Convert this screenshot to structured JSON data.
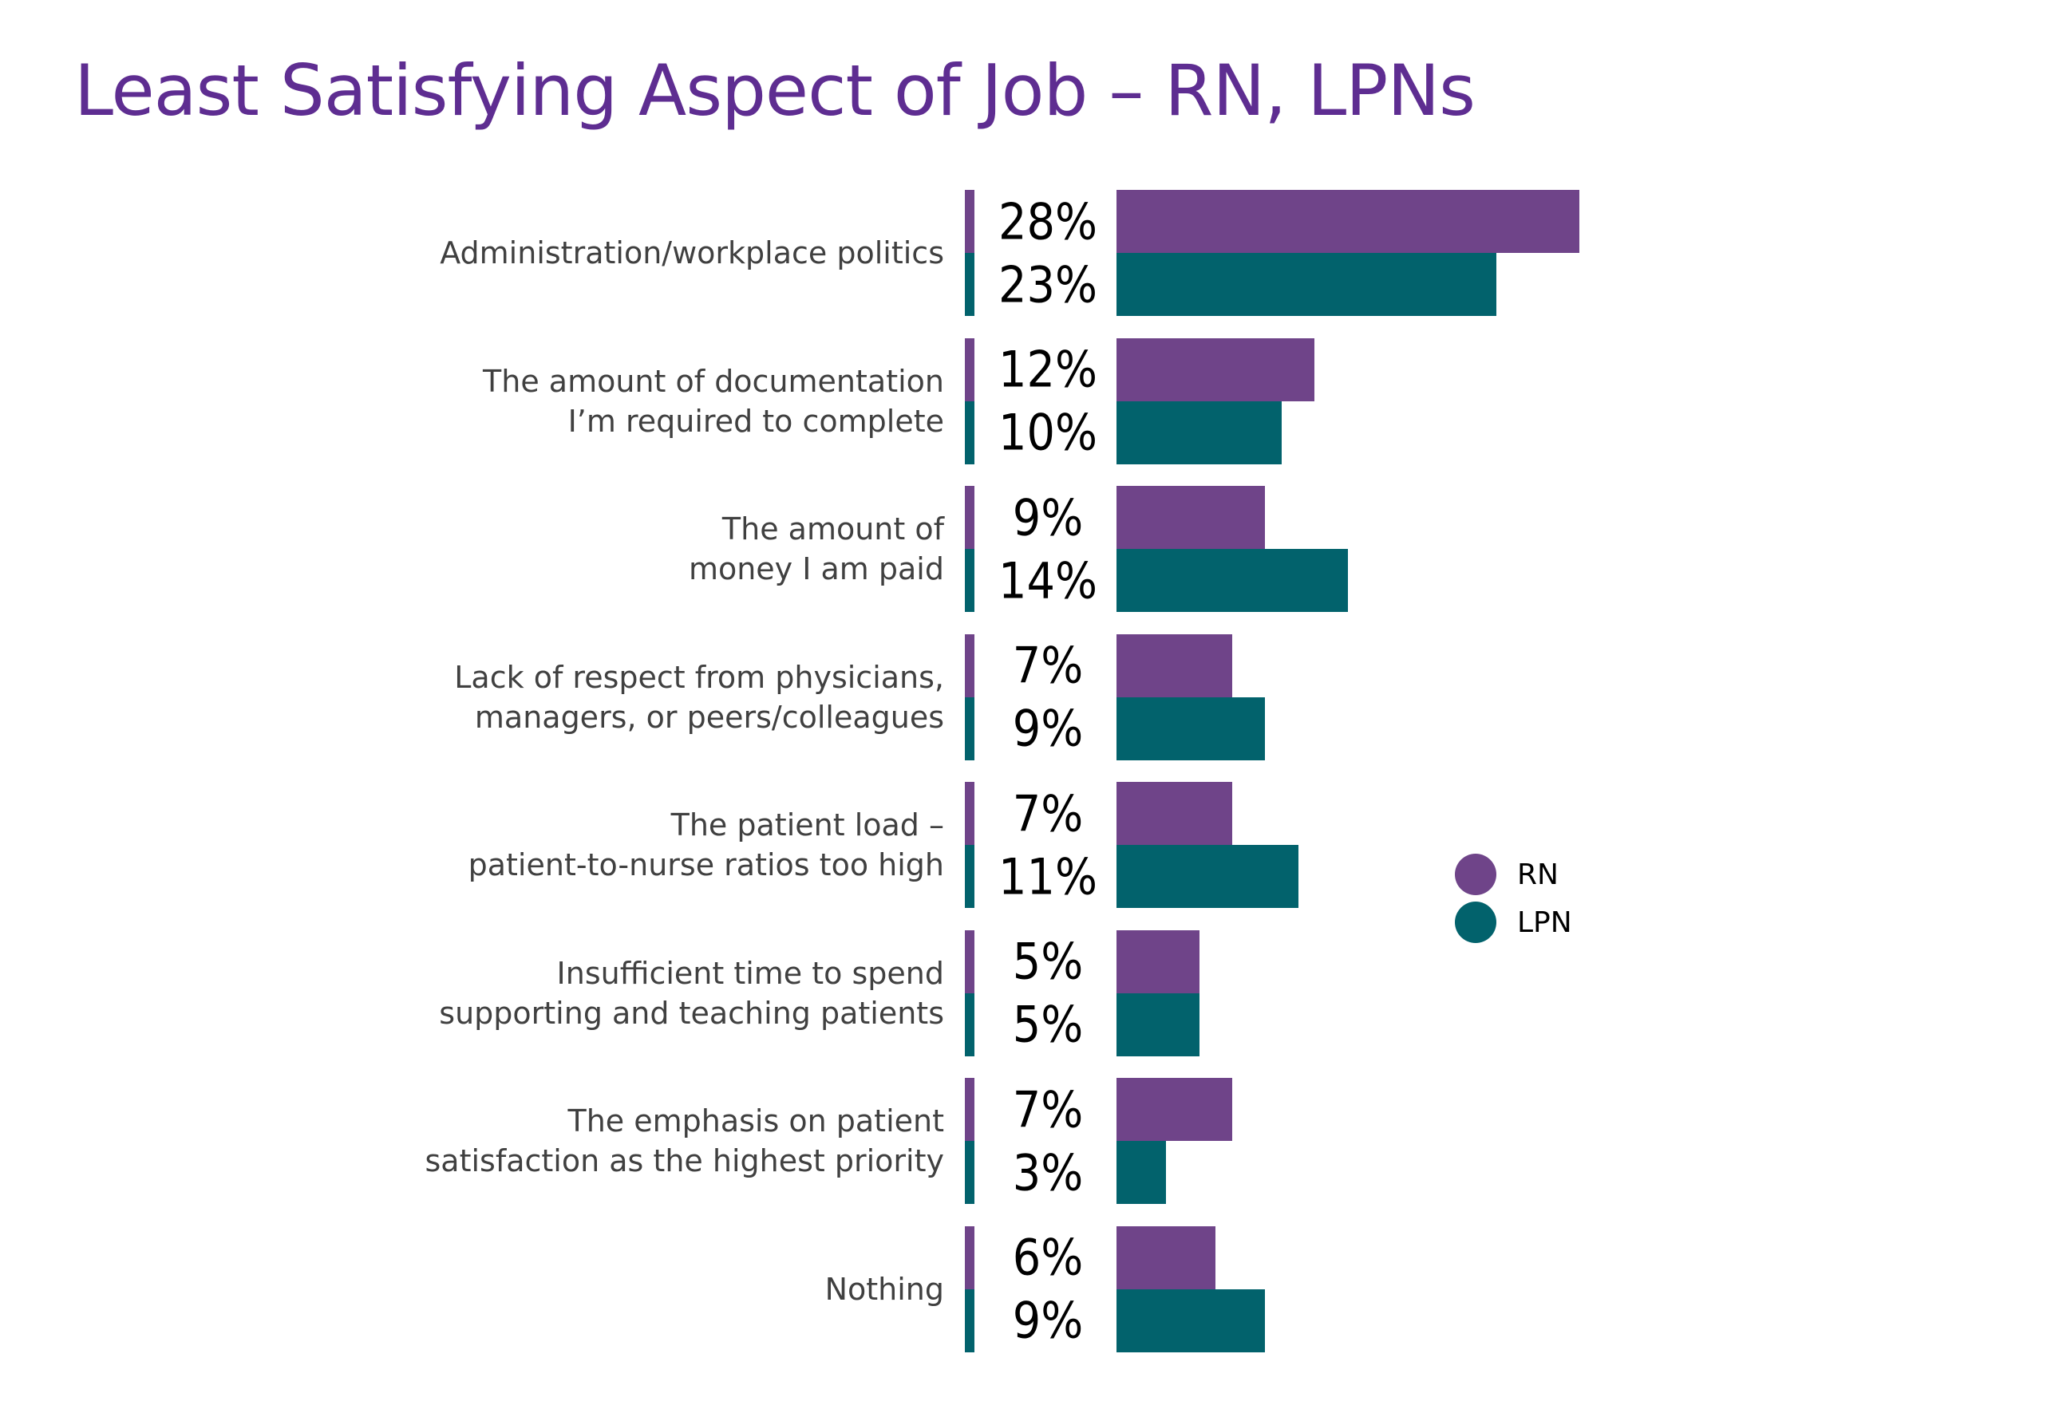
{
  "chart_data": {
    "type": "bar",
    "orientation": "horizontal",
    "title": "Least Satisfying Aspect of Job – RN, LPNs",
    "categories": [
      [
        "Administration/workplace politics"
      ],
      [
        "The amount of documentation",
        "I’m required to complete"
      ],
      [
        "The amount of",
        "money I am paid"
      ],
      [
        "Lack of respect from physicians,",
        "managers, or peers/colleagues"
      ],
      [
        "The patient load –",
        "patient-to-nurse ratios too high"
      ],
      [
        "Insufficient time to spend",
        "supporting and teaching patients"
      ],
      [
        "The emphasis on patient",
        "satisfaction as the highest priority"
      ],
      [
        "Nothing"
      ]
    ],
    "series": [
      {
        "name": "RN",
        "color": "#6f4489",
        "values": [
          28,
          12,
          9,
          7,
          7,
          5,
          7,
          6
        ],
        "labels": [
          "28%",
          "12%",
          "9%",
          "7%",
          "7%",
          "5%",
          "7%",
          "6%"
        ]
      },
      {
        "name": "LPN",
        "color": "#02626c",
        "values": [
          23,
          10,
          14,
          9,
          11,
          5,
          3,
          9
        ],
        "labels": [
          "23%",
          "10%",
          "14%",
          "9%",
          "11%",
          "5%",
          "3%",
          "9%"
        ]
      }
    ],
    "unit": "%",
    "grid": false,
    "legend_position": "right"
  }
}
